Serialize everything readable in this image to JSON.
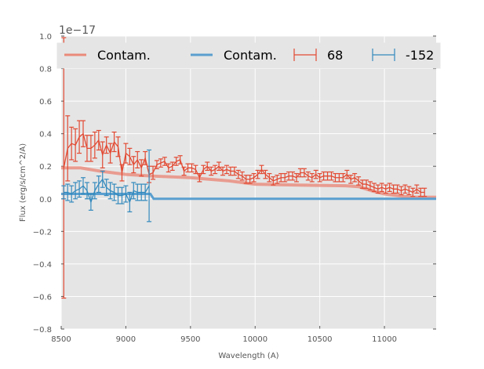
{
  "chart_data": {
    "type": "line",
    "title": "",
    "xlabel": "Wavelength (A)",
    "ylabel": "Flux (erg/s/cm^2/A)",
    "y_offset_label": "1e−17",
    "xlim": [
      8500,
      11400
    ],
    "ylim": [
      -0.8,
      1.0
    ],
    "xticks": [
      8500,
      9000,
      9500,
      10000,
      10500,
      11000
    ],
    "yticks": [
      -0.8,
      -0.6,
      -0.4,
      -0.2,
      0.0,
      0.2,
      0.4,
      0.6,
      0.8,
      1.0
    ],
    "xtick_labels": [
      "8500",
      "9000",
      "9500",
      "10000",
      "10500",
      "11000"
    ],
    "ytick_labels": [
      "−0.8",
      "−0.6",
      "−0.4",
      "−0.2",
      "0.0",
      "0.2",
      "0.4",
      "0.6",
      "0.8",
      "1.0"
    ],
    "grid": true,
    "legend_placement": "top",
    "colors": {
      "red": "#E24A33",
      "blue": "#348ABD",
      "red_model": "#EA8A7A",
      "blue_model": "#5A9FCF",
      "bg": "#E5E5E5"
    },
    "legend": [
      "Contam.",
      "Contam.",
      "68",
      "-152"
    ],
    "models": [
      {
        "name": "Contam.",
        "color": "red_model",
        "x": [
          8500,
          8650,
          8800,
          9000,
          9200,
          9500,
          9800,
          10000,
          10300,
          10700,
          10800,
          10900,
          11000,
          11200,
          11400
        ],
        "y": [
          0.19,
          0.19,
          0.17,
          0.15,
          0.14,
          0.13,
          0.11,
          0.09,
          0.085,
          0.08,
          0.075,
          0.05,
          0.03,
          0.01,
          0.01
        ]
      },
      {
        "name": "Contam.",
        "color": "blue_model",
        "x": [
          8500,
          9190,
          9215,
          11400
        ],
        "y": [
          0.03,
          0.03,
          0.0,
          0.0
        ]
      }
    ],
    "series": [
      {
        "name": "68",
        "color": "red",
        "x_start": 8520,
        "x_step": 30,
        "y": [
          0.19,
          0.31,
          0.34,
          0.33,
          0.38,
          0.4,
          0.31,
          0.31,
          0.33,
          0.36,
          0.27,
          0.33,
          0.28,
          0.35,
          0.32,
          0.16,
          0.28,
          0.26,
          0.21,
          0.24,
          0.19,
          0.25,
          0.15,
          0.16,
          0.21,
          0.22,
          0.23,
          0.19,
          0.2,
          0.23,
          0.24,
          0.17,
          0.19,
          0.19,
          0.18,
          0.13,
          0.18,
          0.2,
          0.17,
          0.18,
          0.2,
          0.17,
          0.18,
          0.17,
          0.17,
          0.15,
          0.14,
          0.12,
          0.12,
          0.13,
          0.15,
          0.18,
          0.15,
          0.13,
          0.11,
          0.12,
          0.13,
          0.13,
          0.14,
          0.14,
          0.13,
          0.16,
          0.16,
          0.14,
          0.13,
          0.15,
          0.13,
          0.14,
          0.14,
          0.14,
          0.13,
          0.13,
          0.13,
          0.15,
          0.12,
          0.13,
          0.11,
          0.09,
          0.09,
          0.08,
          0.07,
          0.06,
          0.07,
          0.06,
          0.07,
          0.06,
          0.06,
          0.05,
          0.06,
          0.05,
          0.04,
          0.06,
          0.04,
          0.04
        ],
        "err": [
          0.8,
          0.2,
          0.1,
          0.1,
          0.1,
          0.08,
          0.08,
          0.08,
          0.08,
          0.06,
          0.08,
          0.05,
          0.06,
          0.06,
          0.06,
          0.05,
          0.06,
          0.05,
          0.05,
          0.05,
          0.05,
          0.04,
          0.05,
          0.04,
          0.025,
          0.025,
          0.025,
          0.025,
          0.025,
          0.025,
          0.025,
          0.025,
          0.025,
          0.025,
          0.025,
          0.025,
          0.025,
          0.025,
          0.025,
          0.025,
          0.025,
          0.025,
          0.025,
          0.025,
          0.025,
          0.025,
          0.025,
          0.025,
          0.025,
          0.025,
          0.025,
          0.025,
          0.025,
          0.025,
          0.025,
          0.025,
          0.025,
          0.025,
          0.025,
          0.025,
          0.025,
          0.025,
          0.025,
          0.025,
          0.025,
          0.025,
          0.025,
          0.025,
          0.025,
          0.025,
          0.025,
          0.025,
          0.025,
          0.025,
          0.025,
          0.025,
          0.025,
          0.025,
          0.025,
          0.025,
          0.025,
          0.025,
          0.025,
          0.025,
          0.025,
          0.025,
          0.025,
          0.025,
          0.025,
          0.025,
          0.025,
          0.025,
          0.025,
          0.025
        ]
      },
      {
        "name": "-152",
        "color": "blue",
        "x_start": 8520,
        "x_step": 30,
        "y": [
          0.04,
          0.04,
          0.03,
          0.05,
          0.06,
          0.08,
          0.05,
          -0.02,
          0.05,
          0.09,
          0.12,
          0.07,
          0.05,
          0.04,
          0.02,
          0.02,
          0.03,
          -0.02,
          0.05,
          0.04,
          0.04,
          0.04,
          0.08
        ],
        "err": [
          0.04,
          0.05,
          0.05,
          0.05,
          0.05,
          0.05,
          0.05,
          0.05,
          0.05,
          0.05,
          0.05,
          0.05,
          0.05,
          0.05,
          0.05,
          0.05,
          0.05,
          0.06,
          0.05,
          0.05,
          0.05,
          0.05,
          0.22
        ]
      }
    ]
  }
}
